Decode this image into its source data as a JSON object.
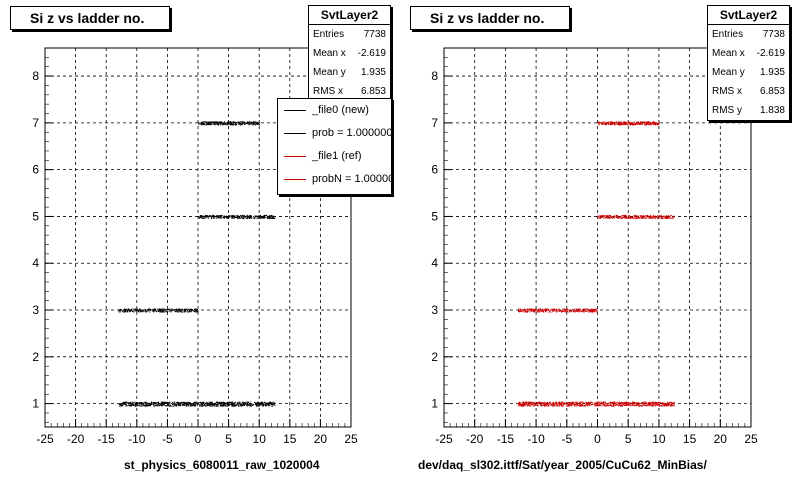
{
  "panels": [
    {
      "title": "Si z vs ladder no.",
      "stats": {
        "name": "SvtLayer2",
        "rows": [
          {
            "label": "Entries",
            "value": "7738"
          },
          {
            "label": "Mean x",
            "value": "-2.619"
          },
          {
            "label": "Mean y",
            "value": "1.935"
          },
          {
            "label": "RMS x",
            "value": "6.853"
          }
        ]
      },
      "legend": [
        {
          "label": "_file0 (new)",
          "color": "#000000"
        },
        {
          "label": "prob = 1.000000",
          "color": "#000000"
        },
        {
          "label": "_file1 (ref)",
          "color": "#cc0000"
        },
        {
          "label": "probN = 1.000000",
          "color": "#cc0000"
        }
      ],
      "footer": "st_physics_6080011_raw_1020004"
    },
    {
      "title": "Si z vs ladder no.",
      "stats": {
        "name": "SvtLayer2",
        "rows": [
          {
            "label": "Entries",
            "value": "7738"
          },
          {
            "label": "Mean x",
            "value": "-2.619"
          },
          {
            "label": "Mean y",
            "value": "1.935"
          },
          {
            "label": "RMS x",
            "value": "6.853"
          },
          {
            "label": "RMS y",
            "value": "1.838"
          }
        ]
      },
      "footer": "dev/daq_sl302.ittf/Sat/year_2005/CuCu62_MinBias/"
    }
  ],
  "chart_data": [
    {
      "type": "scatter",
      "title": "Si z vs ladder no.",
      "color": "#000000",
      "xlim": [
        -25,
        25
      ],
      "ylim": [
        0.5,
        8.6
      ],
      "xticks": [
        -25,
        -20,
        -15,
        -10,
        -5,
        0,
        5,
        10,
        15,
        20,
        25
      ],
      "yticks": [
        1,
        2,
        3,
        4,
        5,
        6,
        7,
        8
      ],
      "grid": true,
      "legend_position": "top-right",
      "bands": [
        {
          "y": 1,
          "x_min": -13,
          "x_max": 12.5,
          "density": "high"
        },
        {
          "y": 3,
          "x_min": -13,
          "x_max": 0,
          "density": "medium"
        },
        {
          "y": 5,
          "x_min": 0,
          "x_max": 12.5,
          "density": "medium"
        },
        {
          "y": 7,
          "x_min": 0,
          "x_max": 10,
          "density": "medium"
        }
      ]
    },
    {
      "type": "scatter",
      "title": "Si z vs ladder no.",
      "color": "#cc0000",
      "xlim": [
        -25,
        25
      ],
      "ylim": [
        0.5,
        8.6
      ],
      "xticks": [
        -25,
        -20,
        -15,
        -10,
        -5,
        0,
        5,
        10,
        15,
        20,
        25
      ],
      "yticks": [
        1,
        2,
        3,
        4,
        5,
        6,
        7,
        8
      ],
      "grid": true,
      "bands": [
        {
          "y": 1,
          "x_min": -13,
          "x_max": 12.5,
          "density": "high"
        },
        {
          "y": 3,
          "x_min": -13,
          "x_max": 0,
          "density": "medium"
        },
        {
          "y": 5,
          "x_min": 0,
          "x_max": 12.5,
          "density": "medium"
        },
        {
          "y": 7,
          "x_min": 0,
          "x_max": 10,
          "density": "medium"
        }
      ]
    }
  ]
}
